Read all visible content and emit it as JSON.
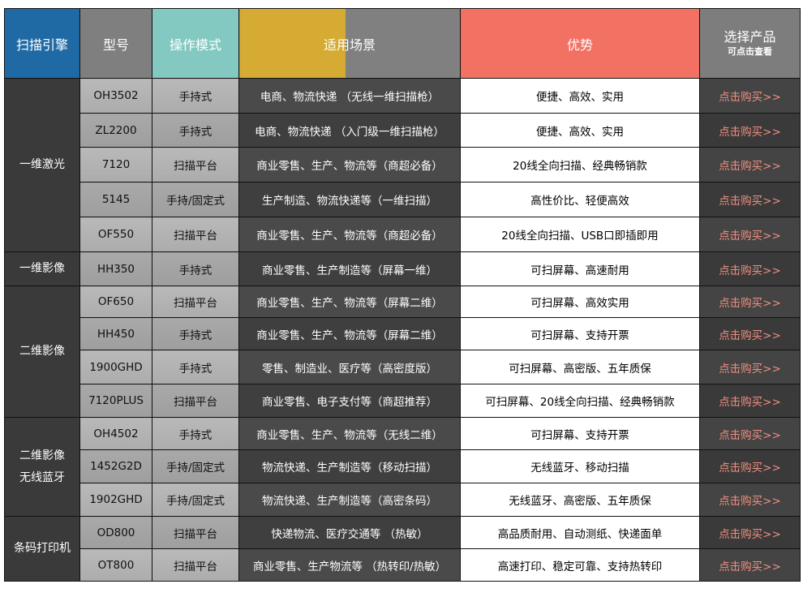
{
  "header": {
    "engine": "扫描引擎",
    "model": "型号",
    "mode": "操作模式",
    "scene": "适用场景",
    "advantage": "优势",
    "select": "选择产品",
    "select_sub": "可点击查看"
  },
  "colors": {
    "engine_header": "#1f6aa5",
    "mode_header": "#84c9c1",
    "scene_header": "#d6ab33",
    "advantage_header": "#f27163",
    "buy_link": "#f0907f"
  },
  "groups": [
    {
      "name": [
        "一维激光"
      ],
      "rows": [
        {
          "model": "OH3502",
          "mode": "手持式",
          "scene": "电商、物流快递 （无线一维扫描枪）",
          "advantage": "便捷、高效、实用",
          "buy": "点击购买>>"
        },
        {
          "model": "ZL2200",
          "mode": "手持式",
          "scene": "电商、物流快递 （入门级一维扫描枪）",
          "advantage": "便捷、高效、实用",
          "buy": "点击购买>>"
        },
        {
          "model": "7120",
          "mode": "扫描平台",
          "scene": "商业零售、生产、物流等（商超必备）",
          "advantage": "20线全向扫描、经典畅销款",
          "buy": "点击购买>>"
        },
        {
          "model": "5145",
          "mode": "手持/固定式",
          "scene": "生产制造、物流快递等（一维扫描）",
          "advantage": "高性价比、轻便高效",
          "buy": "点击购买>>"
        },
        {
          "model": "OF550",
          "mode": "扫描平台",
          "scene": "商业零售、生产、物流等（商超必备）",
          "advantage": "20线全向扫描、USB口即插即用",
          "buy": "点击购买>>"
        }
      ]
    },
    {
      "name": [
        "一维影像"
      ],
      "rows": [
        {
          "model": "HH350",
          "mode": "手持式",
          "scene": "商业零售、生产制造等（屏幕一维）",
          "advantage": "可扫屏幕、高速耐用",
          "buy": "点击购买>>"
        }
      ]
    },
    {
      "name": [
        "二维影像"
      ],
      "rows": [
        {
          "model": "OF650",
          "mode": "扫描平台",
          "scene": "商业零售、生产、物流等（屏幕二维）",
          "advantage": "可扫屏幕、高效实用",
          "buy": "点击购买>>"
        },
        {
          "model": "HH450",
          "mode": "手持式",
          "scene": "商业零售、生产、物流等（屏幕二维）",
          "advantage": "可扫屏幕、支持开票",
          "buy": "点击购买>>"
        },
        {
          "model": "1900GHD",
          "mode": "手持式",
          "scene": "零售、制造业、医疗等（高密度版）",
          "advantage": "可扫屏幕、高密版、五年质保",
          "buy": "点击购买>>"
        },
        {
          "model": "7120PLUS",
          "mode": "扫描平台",
          "scene": "商业零售、电子支付等（商超推荐）",
          "advantage": "可扫屏幕、20线全向扫描、经典畅销款",
          "buy": "点击购买>>"
        }
      ]
    },
    {
      "name": [
        "二维影像",
        "无线蓝牙"
      ],
      "rows": [
        {
          "model": "OH4502",
          "mode": "手持式",
          "scene": "商业零售、生产、物流等（无线二维）",
          "advantage": "可扫屏幕、支持开票",
          "buy": "点击购买>>"
        },
        {
          "model": "1452G2D",
          "mode": "手持/固定式",
          "scene": "物流快递、生产制造等（移动扫描）",
          "advantage": "无线蓝牙、移动扫描",
          "buy": "点击购买>>"
        },
        {
          "model": "1902GHD",
          "mode": "手持/固定式",
          "scene": "物流快递、生产制造等（高密条码）",
          "advantage": "无线蓝牙、高密版、五年质保",
          "buy": "点击购买>>"
        }
      ]
    },
    {
      "name": [
        "条码打印机"
      ],
      "rows": [
        {
          "model": "OD800",
          "mode": "扫描平台",
          "scene": "快递物流、医疗交通等 （热敏）",
          "advantage": "高品质耐用、自动测纸、快递面单",
          "buy": "点击购买>>"
        },
        {
          "model": "OT800",
          "mode": "扫描平台",
          "scene": "商业零售、生产物流等 （热转印/热敏）",
          "advantage": "高速打印、稳定可靠、支持热转印",
          "buy": "点击购买>>"
        }
      ]
    }
  ]
}
